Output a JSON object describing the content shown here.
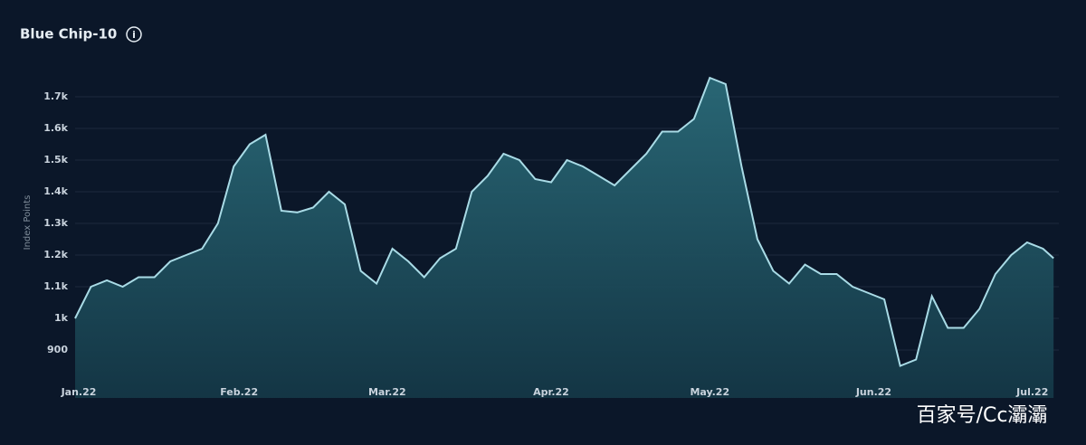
{
  "chart_data": {
    "type": "area",
    "title": "Blue Chip-10",
    "y_label": "Index Points",
    "watermark": "百家号/Cc灞灞",
    "color": "#a9dbe6",
    "fill": "#1f5563",
    "grid": true,
    "xlim": [
      0,
      186
    ],
    "ylim": [
      760,
      1800
    ],
    "xticks": [
      {
        "value": 0,
        "label": "Jan.22"
      },
      {
        "value": 31,
        "label": "Feb.22"
      },
      {
        "value": 59,
        "label": "Mar.22"
      },
      {
        "value": 90,
        "label": "Apr.22"
      },
      {
        "value": 120,
        "label": "May.22"
      },
      {
        "value": 151,
        "label": "Jun.22"
      },
      {
        "value": 181,
        "label": "Jul.22"
      }
    ],
    "yticks": [
      900,
      {
        "value": 1000,
        "label": "1k"
      },
      {
        "value": 1100,
        "label": "1.1k"
      },
      {
        "value": 1200,
        "label": "1.2k"
      },
      {
        "value": 1300,
        "label": "1.3k"
      },
      {
        "value": 1400,
        "label": "1.4k"
      },
      {
        "value": 1500,
        "label": "1.5k"
      },
      {
        "value": 1600,
        "label": "1.6k"
      },
      {
        "value": 1700,
        "label": "1.7k"
      }
    ],
    "x": [
      0,
      3,
      6,
      9,
      12,
      15,
      18,
      21,
      24,
      27,
      30,
      33,
      36,
      39,
      42,
      45,
      48,
      51,
      54,
      57,
      60,
      63,
      66,
      69,
      72,
      75,
      78,
      81,
      84,
      87,
      90,
      93,
      96,
      99,
      102,
      105,
      108,
      111,
      114,
      117,
      120,
      123,
      126,
      129,
      132,
      135,
      138,
      141,
      144,
      147,
      150,
      153,
      156,
      159,
      162,
      165,
      168,
      171,
      174,
      177,
      180,
      183,
      185
    ],
    "values": [
      1000,
      1100,
      1120,
      1100,
      1130,
      1130,
      1180,
      1200,
      1220,
      1300,
      1480,
      1550,
      1580,
      1340,
      1335,
      1350,
      1400,
      1360,
      1150,
      1110,
      1220,
      1180,
      1130,
      1190,
      1220,
      1400,
      1450,
      1520,
      1500,
      1440,
      1430,
      1500,
      1480,
      1450,
      1420,
      1470,
      1520,
      1590,
      1590,
      1630,
      1760,
      1740,
      1480,
      1250,
      1150,
      1110,
      1170,
      1140,
      1140,
      1100,
      1080,
      1060,
      850,
      870,
      1070,
      970,
      970,
      1030,
      1140,
      1200,
      1240,
      1220,
      1190
    ]
  }
}
